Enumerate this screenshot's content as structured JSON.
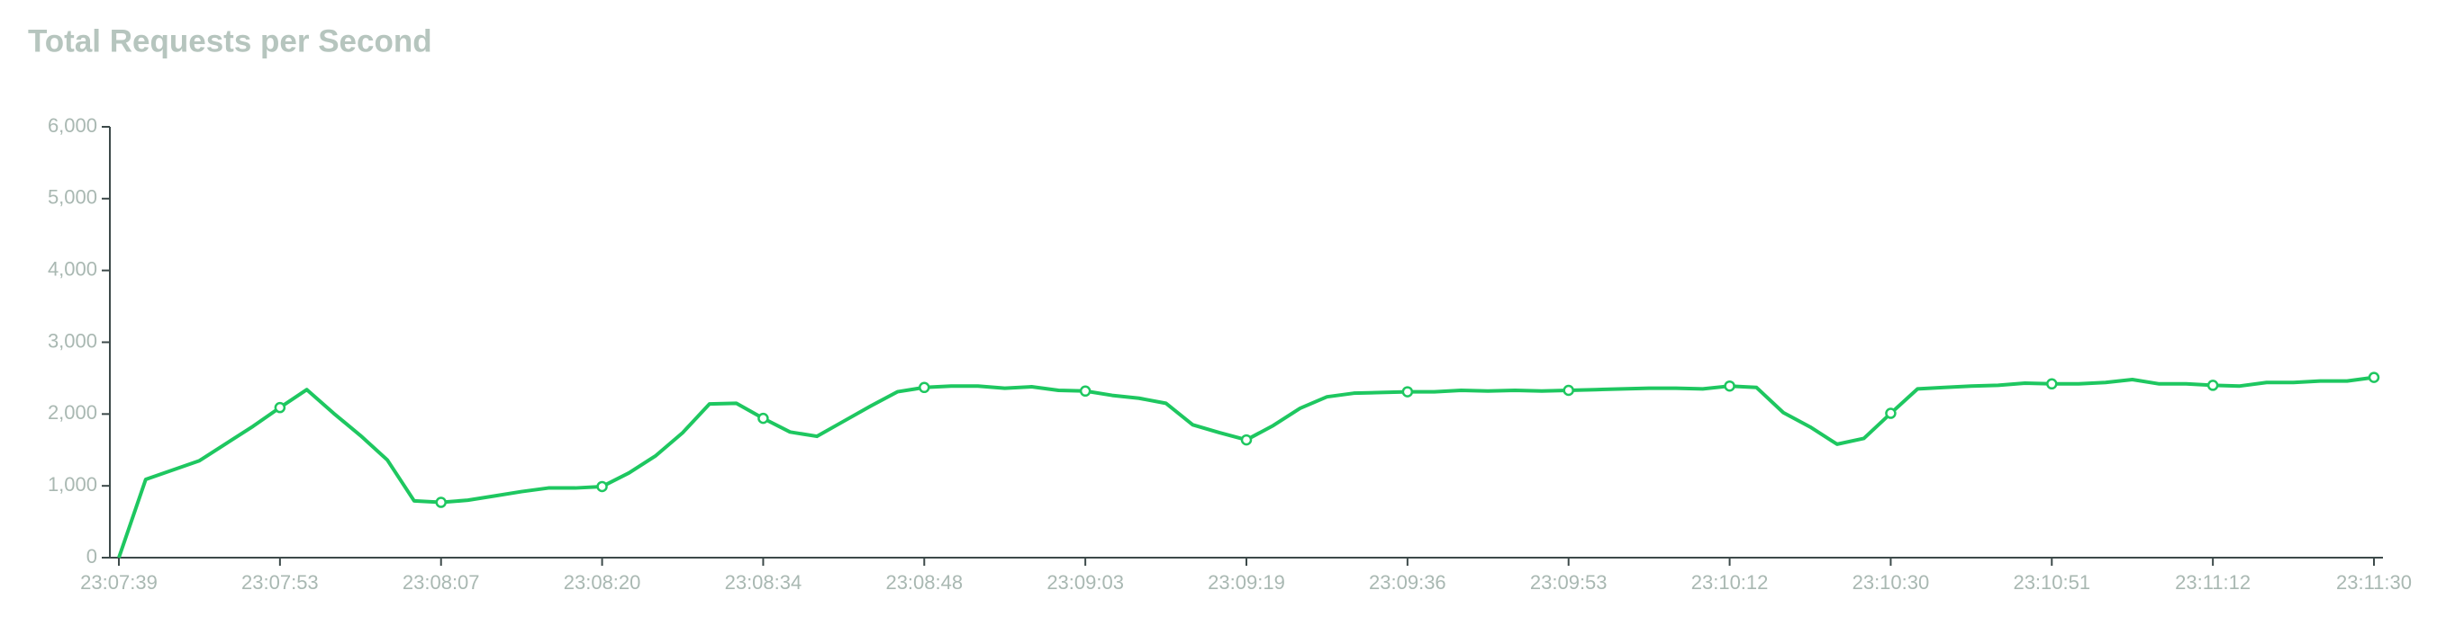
{
  "chart_data": {
    "type": "line",
    "title": "Total Requests per Second",
    "categories": [
      "23:07:39",
      null,
      null,
      null,
      null,
      null,
      "23:07:53",
      null,
      null,
      null,
      null,
      null,
      "23:08:07",
      null,
      null,
      null,
      null,
      null,
      "23:08:20",
      null,
      null,
      null,
      null,
      null,
      "23:08:34",
      null,
      null,
      null,
      null,
      null,
      "23:08:48",
      null,
      null,
      null,
      null,
      null,
      "23:09:03",
      null,
      null,
      null,
      null,
      null,
      "23:09:19",
      null,
      null,
      null,
      null,
      null,
      "23:09:36",
      null,
      null,
      null,
      null,
      null,
      "23:09:53",
      null,
      null,
      null,
      null,
      null,
      "23:10:12",
      null,
      null,
      null,
      null,
      null,
      "23:10:30",
      null,
      null,
      null,
      null,
      null,
      "23:10:51",
      null,
      null,
      null,
      null,
      null,
      "23:11:12",
      null,
      null,
      null,
      null,
      null,
      "23:11:30"
    ],
    "series": [
      {
        "name": "Total Requests per Second",
        "color": "#1ec760",
        "values": [
          0,
          1090,
          1220,
          1350,
          1590,
          1830,
          2090,
          2340,
          2010,
          1700,
          1360,
          790,
          770,
          800,
          860,
          920,
          970,
          970,
          990,
          1180,
          1420,
          1740,
          2140,
          2150,
          1940,
          1750,
          1690,
          1900,
          2110,
          2310,
          2370,
          2390,
          2390,
          2360,
          2380,
          2330,
          2320,
          2260,
          2220,
          2150,
          1850,
          1740,
          1640,
          1840,
          2080,
          2240,
          2290,
          2300,
          2310,
          2310,
          2330,
          2320,
          2330,
          2320,
          2330,
          2340,
          2350,
          2360,
          2360,
          2350,
          2390,
          2370,
          2020,
          1820,
          1580,
          1660,
          2010,
          2350,
          2370,
          2390,
          2400,
          2430,
          2420,
          2420,
          2440,
          2480,
          2420,
          2420,
          2400,
          2390,
          2440,
          2440,
          2460,
          2460,
          2510
        ]
      }
    ],
    "ylim": [
      0,
      6000
    ],
    "yticks": [
      0,
      {
        "value": 1000,
        "label": "1,000"
      },
      {
        "value": 2000,
        "label": "2,000"
      },
      {
        "value": 3000,
        "label": "3,000"
      },
      {
        "value": 4000,
        "label": "4,000"
      },
      {
        "value": 5000,
        "label": "5,000"
      },
      {
        "value": 6000,
        "label": "6,000"
      }
    ],
    "grid": false
  }
}
